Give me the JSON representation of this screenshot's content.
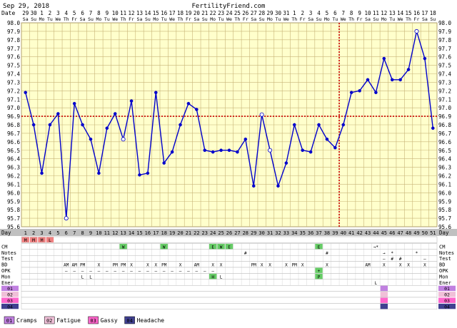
{
  "header": {
    "date_text": "Sep 29, 2018",
    "site": "FertilityFriend.com"
  },
  "colors": {
    "plot_bg": "#ffffcc",
    "grid": "#c8b478",
    "line": "#0000cc",
    "coverline": "#cc0000",
    "label_bg": "#c0c0c0",
    "menses": "#f08080",
    "cm": "#66cc66",
    "cramps": "#c080e0",
    "fatigue": "#f0c0d8",
    "gassy": "#ff66cc",
    "headache": "#404090"
  },
  "chart_data": {
    "type": "line",
    "ylim": [
      95.6,
      98.0
    ],
    "y_ticks": [
      "98.0",
      "97.9",
      "97.8",
      "97.7",
      "97.6",
      "97.5",
      "97.4",
      "97.3",
      "97.2",
      "97.1",
      "97.0",
      "96.9",
      "96.8",
      "96.7",
      "96.6",
      "96.5",
      "96.4",
      "96.3",
      "96.2",
      "96.1",
      "96.0",
      "95.9",
      "95.8",
      "95.7",
      "95.6"
    ],
    "dates": [
      "29",
      "30",
      "1",
      "2",
      "3",
      "4",
      "5",
      "6",
      "7",
      "8",
      "9",
      "10",
      "11",
      "12",
      "13",
      "14",
      "15",
      "16",
      "17",
      "18",
      "19",
      "20",
      "21",
      "22",
      "23",
      "24",
      "25",
      "26",
      "27",
      "28",
      "29",
      "30",
      "31",
      "1",
      "2",
      "3",
      "4",
      "5",
      "6",
      "7",
      "8",
      "9",
      "10",
      "11",
      "12",
      "13",
      "14",
      "15",
      "16",
      "17",
      "18"
    ],
    "weekdays": [
      "Sa",
      "Su",
      "Mo",
      "Tu",
      "We",
      "Th",
      "Fr",
      "Sa",
      "Su",
      "Mo",
      "Tu",
      "We",
      "Th",
      "Fr",
      "Sa",
      "Su",
      "Mo",
      "Tu",
      "We",
      "Th",
      "Fr",
      "Sa",
      "Su",
      "Mo",
      "Tu",
      "We",
      "Th",
      "Fr",
      "Sa",
      "Su",
      "Mo",
      "Tu",
      "We",
      "Th",
      "Fr",
      "Sa",
      "Su",
      "Mo",
      "Tu",
      "We",
      "Th",
      "Fr",
      "Sa",
      "Su",
      "Mo",
      "Tu",
      "We",
      "Th",
      "Fr",
      "Sa",
      "Su"
    ],
    "cycle_days": [
      "1",
      "2",
      "3",
      "4",
      "5",
      "6",
      "7",
      "8",
      "9",
      "10",
      "11",
      "12",
      "13",
      "14",
      "15",
      "16",
      "17",
      "18",
      "19",
      "20",
      "21",
      "22",
      "23",
      "24",
      "25",
      "26",
      "27",
      "28",
      "29",
      "30",
      "31",
      "32",
      "33",
      "34",
      "35",
      "36",
      "37",
      "38",
      "39",
      "40",
      "41",
      "42",
      "43",
      "44",
      "45",
      "46",
      "47",
      "48",
      "49",
      "50",
      "51"
    ],
    "temps": [
      97.18,
      96.8,
      96.23,
      96.8,
      96.93,
      95.7,
      97.05,
      96.8,
      96.63,
      96.23,
      96.76,
      96.93,
      96.63,
      97.08,
      96.21,
      96.23,
      97.18,
      96.35,
      96.48,
      96.8,
      97.05,
      96.98,
      96.5,
      96.48,
      96.5,
      96.5,
      96.48,
      96.63,
      96.08,
      96.92,
      96.5,
      96.08,
      96.35,
      96.8,
      96.5,
      96.48,
      96.8,
      96.63,
      96.53,
      96.8,
      97.18,
      97.2,
      97.33,
      97.18,
      97.58,
      97.33,
      97.33,
      97.45,
      97.9,
      97.58,
      96.76
    ],
    "open_points": [
      5,
      12,
      29,
      30,
      48
    ],
    "coverline": 96.9,
    "ovulation_day": 40
  },
  "rows": {
    "day_label": "Day",
    "labels": [
      "CM",
      "Notes",
      "Test",
      "BD",
      "OPK",
      "Mon",
      "Ener"
    ],
    "menses_marks": [
      "M",
      "M",
      "M",
      "L"
    ],
    "cm_marks": [
      {
        "day": 13,
        "text": "W"
      },
      {
        "day": 18,
        "text": "W"
      },
      {
        "day": 24,
        "text": "E"
      },
      {
        "day": 25,
        "text": "W"
      },
      {
        "day": 26,
        "text": "E"
      },
      {
        "day": 37,
        "text": "E"
      },
      {
        "day": 44,
        "text": "→*"
      }
    ],
    "notes_marks": [
      {
        "day": 28,
        "text": "#"
      },
      {
        "day": 38,
        "text": "#"
      },
      {
        "day": 45,
        "text": "→"
      },
      {
        "day": 46,
        "text": "*"
      },
      {
        "day": 49,
        "text": "*"
      }
    ],
    "test_marks": [
      {
        "day": 45,
        "text": "–"
      },
      {
        "day": 46,
        "text": "#"
      },
      {
        "day": 47,
        "text": "#"
      },
      {
        "day": 50,
        "text": "–"
      }
    ],
    "bd_marks": [
      {
        "day": 6,
        "text": "AM"
      },
      {
        "day": 7,
        "text": "AM"
      },
      {
        "day": 8,
        "text": "PM"
      },
      {
        "day": 10,
        "text": "X"
      },
      {
        "day": 12,
        "text": "PM"
      },
      {
        "day": 13,
        "text": "PM"
      },
      {
        "day": 14,
        "text": "X"
      },
      {
        "day": 16,
        "text": "X"
      },
      {
        "day": 17,
        "text": "X"
      },
      {
        "day": 18,
        "text": "PM"
      },
      {
        "day": 20,
        "text": "X"
      },
      {
        "day": 22,
        "text": "AM"
      },
      {
        "day": 24,
        "text": "X"
      },
      {
        "day": 25,
        "text": "X"
      },
      {
        "day": 29,
        "text": "PM"
      },
      {
        "day": 30,
        "text": "X"
      },
      {
        "day": 31,
        "text": "X"
      },
      {
        "day": 33,
        "text": "X"
      },
      {
        "day": 34,
        "text": "PM"
      },
      {
        "day": 35,
        "text": "X"
      },
      {
        "day": 38,
        "text": "X"
      },
      {
        "day": 43,
        "text": "AM"
      },
      {
        "day": 45,
        "text": "X"
      },
      {
        "day": 47,
        "text": "X"
      },
      {
        "day": 48,
        "text": "X"
      },
      {
        "day": 50,
        "text": "X"
      }
    ],
    "opk_marks": [
      {
        "day": 6,
        "text": "–"
      },
      {
        "day": 7,
        "text": "–"
      },
      {
        "day": 8,
        "text": "–"
      },
      {
        "day": 9,
        "text": "–"
      },
      {
        "day": 10,
        "text": "–"
      },
      {
        "day": 11,
        "text": "–"
      },
      {
        "day": 12,
        "text": "–"
      },
      {
        "day": 13,
        "text": "–"
      },
      {
        "day": 14,
        "text": "–"
      },
      {
        "day": 15,
        "text": "–"
      },
      {
        "day": 16,
        "text": "–"
      },
      {
        "day": 17,
        "text": "–"
      },
      {
        "day": 18,
        "text": "–"
      },
      {
        "day": 19,
        "text": "–"
      },
      {
        "day": 20,
        "text": "–"
      },
      {
        "day": 21,
        "text": "–"
      },
      {
        "day": 22,
        "text": "–"
      },
      {
        "day": 23,
        "text": "–"
      },
      {
        "day": 24,
        "text": "–"
      },
      {
        "day": 37,
        "text": "+"
      }
    ],
    "mon_marks": [
      {
        "day": 8,
        "text": "L"
      },
      {
        "day": 9,
        "text": "L"
      },
      {
        "day": 24,
        "text": "H"
      },
      {
        "day": 25,
        "text": "L"
      },
      {
        "day": 37,
        "text": "P"
      }
    ],
    "ener_marks": [
      {
        "day": 44,
        "text": "L"
      }
    ],
    "symptom_codes": [
      "01",
      "02",
      "03",
      "04"
    ]
  },
  "legend": [
    {
      "code": "01",
      "label": "Cramps",
      "color": "#c080e0"
    },
    {
      "code": "02",
      "label": "Fatigue",
      "color": "#f0c0d8"
    },
    {
      "code": "03",
      "label": "Gassy",
      "color": "#ff66cc"
    },
    {
      "code": "04",
      "label": "Headache",
      "color": "#404090"
    }
  ]
}
